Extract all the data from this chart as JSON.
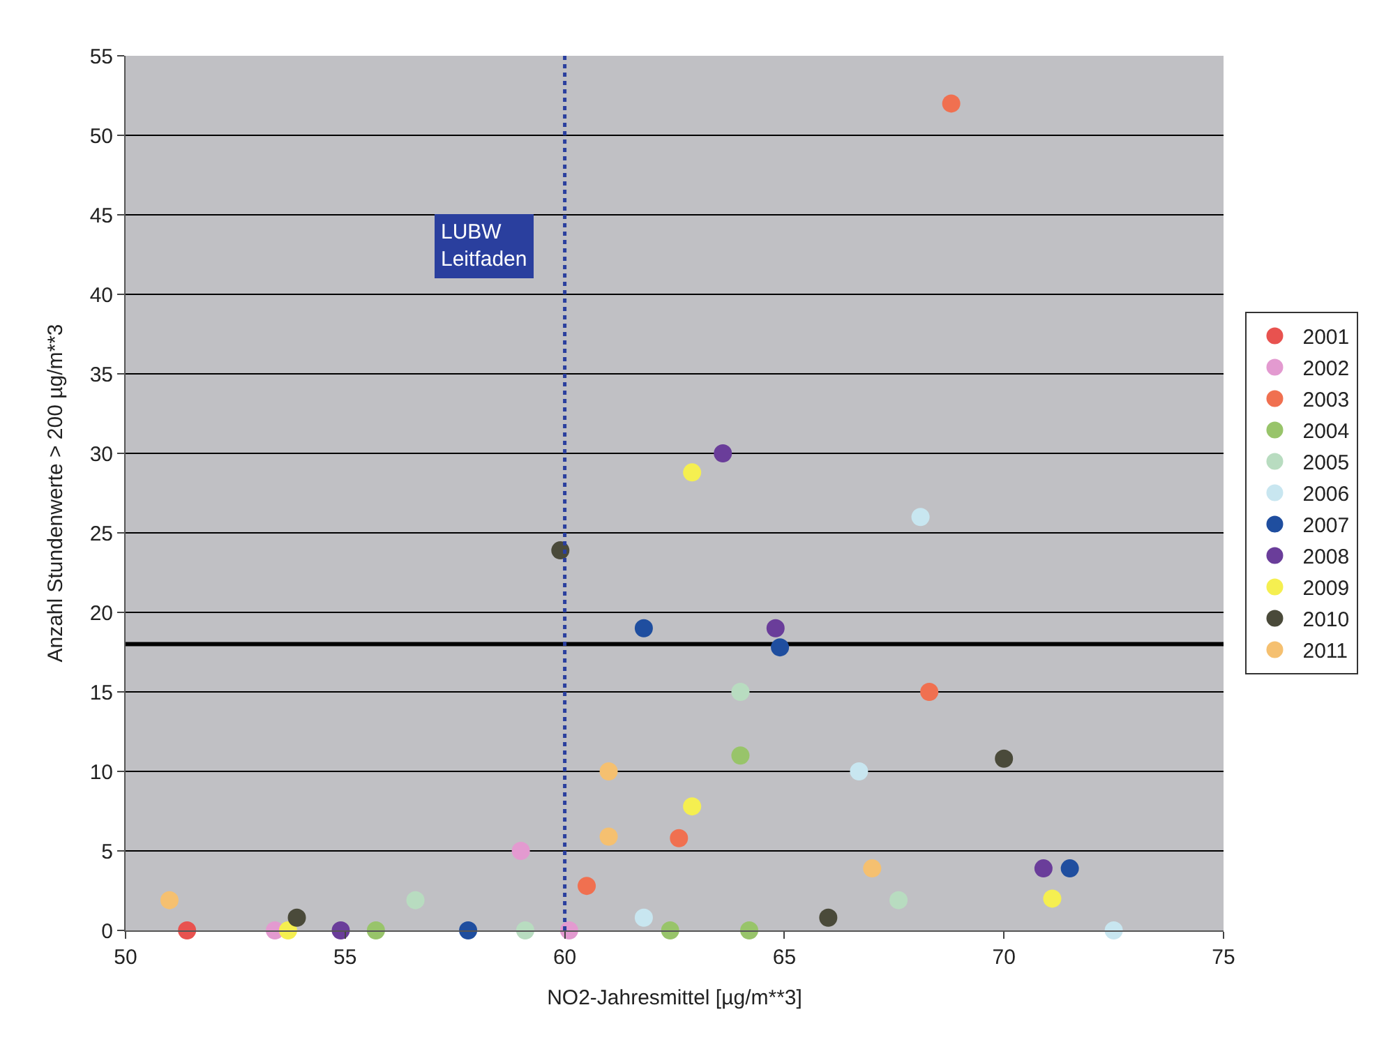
{
  "chart_data": {
    "type": "scatter",
    "xlabel": "NO2-Jahresmittel [µg/m**3]",
    "ylabel": "Anzahl Stundenwerte > 200 µg/m**3",
    "xlim": [
      50,
      75
    ],
    "xticks": [
      50,
      55,
      60,
      65,
      70,
      75
    ],
    "ylim": [
      0,
      55
    ],
    "yticks": [
      0,
      5,
      10,
      15,
      20,
      25,
      30,
      35,
      40,
      45,
      50,
      55
    ],
    "grid": "y",
    "legend": "right",
    "marker": "circle",
    "ref_lines": [
      {
        "axis": "x",
        "value": 60,
        "label": "LUBW\nLeitfaden",
        "color": "#2a3f9e",
        "line_style": "dotted"
      },
      {
        "axis": "y",
        "value": 18,
        "label": null,
        "color": "#000000",
        "line_style": "solid"
      }
    ],
    "series": [
      {
        "name": "2001",
        "color": "#e8524f",
        "x": [
          51.4
        ],
        "values": [
          0
        ]
      },
      {
        "name": "2002",
        "color": "#e39ad0",
        "x": [
          53.4,
          59.0,
          60.1
        ],
        "values": [
          0,
          5,
          0
        ]
      },
      {
        "name": "2003",
        "color": "#f07050",
        "x": [
          68.8,
          60.5,
          62.6,
          68.3
        ],
        "values": [
          52,
          2.8,
          5.8,
          15
        ]
      },
      {
        "name": "2004",
        "color": "#98c46a",
        "x": [
          55.7,
          62.4,
          64.2,
          64.0
        ],
        "values": [
          0,
          0,
          0,
          11
        ]
      },
      {
        "name": "2005",
        "color": "#b8dcc0",
        "x": [
          56.6,
          59.1,
          64.0,
          67.6
        ],
        "values": [
          1.9,
          0,
          15,
          1.9
        ]
      },
      {
        "name": "2006",
        "color": "#c8e6f0",
        "x": [
          61.8,
          66.7,
          68.1,
          72.5
        ],
        "values": [
          0.8,
          10,
          26,
          0
        ]
      },
      {
        "name": "2007",
        "color": "#1f4e9f",
        "x": [
          57.8,
          61.8,
          64.9,
          71.5
        ],
        "values": [
          0,
          19,
          17.8,
          3.9
        ]
      },
      {
        "name": "2008",
        "color": "#6a3d9a",
        "x": [
          54.9,
          63.6,
          64.8,
          70.9
        ],
        "values": [
          0,
          30,
          19,
          3.9
        ]
      },
      {
        "name": "2009",
        "color": "#f5ef50",
        "x": [
          53.7,
          62.9,
          62.9,
          71.1
        ],
        "values": [
          0,
          28.8,
          7.8,
          2.0
        ]
      },
      {
        "name": "2010",
        "color": "#4a4a3a",
        "x": [
          53.9,
          59.9,
          66.0,
          70.0
        ],
        "values": [
          0.8,
          23.9,
          0.8,
          10.8
        ]
      },
      {
        "name": "2011",
        "color": "#f5c070",
        "x": [
          51.0,
          61.0,
          61.0,
          67.0
        ],
        "values": [
          1.9,
          10,
          5.9,
          3.9
        ]
      }
    ]
  }
}
